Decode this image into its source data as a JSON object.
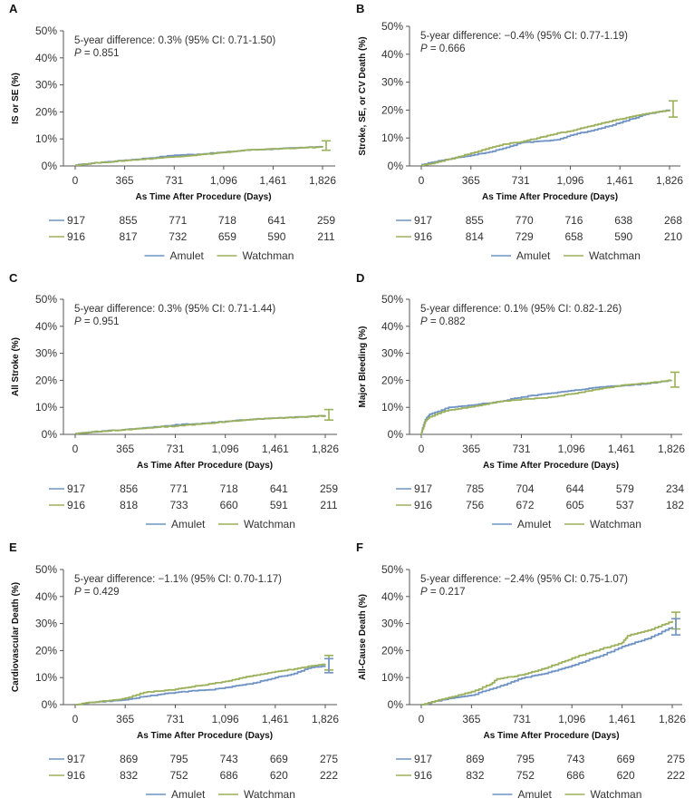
{
  "colors": {
    "amulet": "#6f93c4",
    "watchman": "#9bb05a",
    "axis": "#555555"
  },
  "legend": {
    "amulet": "Amulet",
    "watchman": "Watchman"
  },
  "chart_data": [
    {
      "panel": "A",
      "type": "line",
      "ylabel": "IS or SE (%)",
      "xlabel": "As Time After Procedure (Days)",
      "x_ticks": [
        "0",
        "365",
        "731",
        "1,096",
        "1,461",
        "1,826"
      ],
      "y_ticks": [
        "0%",
        "10%",
        "20%",
        "30%",
        "40%",
        "50%"
      ],
      "xlim": [
        0,
        1826
      ],
      "ylim": [
        0,
        50
      ],
      "annotation": {
        "line1": "5-year difference: 0.3% (95% CI: 0.71-1.50)",
        "p_label": "P",
        "p_value": " = 0.851"
      },
      "series": [
        {
          "name": "Amulet",
          "x": [
            0,
            120,
            365,
            600,
            731,
            900,
            1096,
            1300,
            1461,
            1700,
            1826
          ],
          "y": [
            0.3,
            1.0,
            2.1,
            3.2,
            4.0,
            4.3,
            5.1,
            6.0,
            6.3,
            6.8,
            7.3
          ]
        },
        {
          "name": "Watchman",
          "x": [
            0,
            120,
            365,
            600,
            731,
            900,
            1096,
            1300,
            1461,
            1700,
            1826
          ],
          "y": [
            0.3,
            1.0,
            2.0,
            2.9,
            3.4,
            4.1,
            5.0,
            6.0,
            6.3,
            6.8,
            7.0
          ]
        }
      ],
      "error_bars_at_end": [
        {
          "series": "Watchman",
          "low": 5.8,
          "high": 9.3
        }
      ],
      "risk_table": {
        "amulet": [
          "917",
          "855",
          "771",
          "718",
          "641",
          "259"
        ],
        "watchman": [
          "916",
          "817",
          "732",
          "659",
          "590",
          "211"
        ]
      }
    },
    {
      "panel": "B",
      "type": "line",
      "ylabel": "Stroke, SE, or CV Death (%)",
      "xlabel": "As Time After Procedure (Days)",
      "x_ticks": [
        "0",
        "365",
        "731",
        "1,096",
        "1,461",
        "1,826"
      ],
      "y_ticks": [
        "0%",
        "10%",
        "20%",
        "30%",
        "40%",
        "50%"
      ],
      "xlim": [
        0,
        1826
      ],
      "ylim": [
        0,
        50
      ],
      "annotation": {
        "line1": "5-year difference: −0.4% (95% CI: 0.77-1.19)",
        "p_label": "P",
        "p_value": " = 0.666"
      },
      "series": [
        {
          "name": "Amulet",
          "x": [
            0,
            100,
            250,
            365,
            500,
            600,
            731,
            900,
            1000,
            1096,
            1300,
            1461,
            1650,
            1826
          ],
          "y": [
            0.5,
            1.5,
            3.0,
            3.8,
            5.0,
            6.3,
            8.3,
            9.0,
            9.4,
            11.0,
            13.3,
            15.5,
            18.5,
            20.2
          ]
        },
        {
          "name": "Watchman",
          "x": [
            0,
            100,
            250,
            365,
            500,
            600,
            731,
            900,
            1000,
            1096,
            1300,
            1461,
            1650,
            1826
          ],
          "y": [
            0.3,
            1.2,
            3.0,
            4.6,
            6.5,
            7.8,
            8.6,
            10.5,
            11.8,
            12.5,
            15.0,
            16.8,
            18.7,
            20.0
          ]
        }
      ],
      "error_bars_at_end": [
        {
          "series": "Watchman",
          "low": 17.5,
          "high": 23.3
        }
      ],
      "risk_table": {
        "amulet": [
          "917",
          "855",
          "770",
          "716",
          "638",
          "268"
        ],
        "watchman": [
          "916",
          "814",
          "729",
          "658",
          "590",
          "210"
        ]
      }
    },
    {
      "panel": "C",
      "type": "line",
      "ylabel": "All Stroke (%)",
      "xlabel": "As Time After Procedure (Days)",
      "x_ticks": [
        "0",
        "365",
        "731",
        "1,096",
        "1,461",
        "1,826"
      ],
      "y_ticks": [
        "0%",
        "10%",
        "20%",
        "30%",
        "40%",
        "50%"
      ],
      "xlim": [
        0,
        1826
      ],
      "ylim": [
        0,
        50
      ],
      "annotation": {
        "line1": "5-year difference: 0.3% (95% CI: 0.71-1.44)",
        "p_label": "P",
        "p_value": " = 0.951"
      },
      "series": [
        {
          "name": "Amulet",
          "x": [
            0,
            120,
            365,
            600,
            731,
            900,
            1096,
            1300,
            1461,
            1700,
            1826
          ],
          "y": [
            0.3,
            0.9,
            1.8,
            2.8,
            3.6,
            3.9,
            4.8,
            5.6,
            6.0,
            6.6,
            7.0
          ]
        },
        {
          "name": "Watchman",
          "x": [
            0,
            120,
            365,
            600,
            731,
            900,
            1096,
            1300,
            1461,
            1700,
            1826
          ],
          "y": [
            0.3,
            0.9,
            1.8,
            2.7,
            3.1,
            3.8,
            4.7,
            5.6,
            6.0,
            6.6,
            6.9
          ]
        }
      ],
      "error_bars_at_end": [
        {
          "series": "Watchman",
          "low": 5.3,
          "high": 9.2
        }
      ],
      "risk_table": {
        "amulet": [
          "917",
          "856",
          "771",
          "718",
          "641",
          "259"
        ],
        "watchman": [
          "916",
          "818",
          "733",
          "660",
          "591",
          "211"
        ]
      }
    },
    {
      "panel": "D",
      "type": "line",
      "ylabel": "Major Bleeding (%)",
      "xlabel": "As Time After Procedure (Days)",
      "x_ticks": [
        "0",
        "365",
        "731",
        "1,096",
        "1,461",
        "1,826"
      ],
      "y_ticks": [
        "0%",
        "10%",
        "20%",
        "30%",
        "40%",
        "50%"
      ],
      "xlim": [
        0,
        1826
      ],
      "ylim": [
        0,
        50
      ],
      "annotation": {
        "line1": "5-year difference: 0.1% (95% CI: 0.82-1.26)",
        "p_label": "P",
        "p_value": " = 0.882"
      },
      "series": [
        {
          "name": "Amulet",
          "x": [
            0,
            10,
            30,
            60,
            120,
            200,
            365,
            550,
            731,
            900,
            1096,
            1300,
            1461,
            1650,
            1826
          ],
          "y": [
            0,
            2.5,
            5.5,
            7.5,
            8.5,
            10.0,
            10.8,
            12.0,
            13.8,
            15.0,
            16.2,
            17.5,
            18.0,
            18.8,
            20.0
          ]
        },
        {
          "name": "Watchman",
          "x": [
            0,
            10,
            30,
            60,
            120,
            200,
            365,
            550,
            731,
            900,
            1096,
            1300,
            1461,
            1650,
            1826
          ],
          "y": [
            0,
            2.0,
            5.0,
            6.5,
            7.8,
            9.0,
            10.2,
            12.0,
            13.0,
            13.5,
            15.0,
            16.8,
            18.2,
            19.0,
            20.1
          ]
        }
      ],
      "error_bars_at_end": [
        {
          "series": "Watchman",
          "low": 17.5,
          "high": 23.0
        }
      ],
      "risk_table": {
        "amulet": [
          "917",
          "785",
          "704",
          "644",
          "579",
          "234"
        ],
        "watchman": [
          "916",
          "756",
          "672",
          "605",
          "537",
          "182"
        ]
      }
    },
    {
      "panel": "E",
      "type": "line",
      "ylabel": "Cardiovascular Death (%)",
      "xlabel": "As Time After Procedure (Days)",
      "x_ticks": [
        "0",
        "365",
        "731",
        "1,096",
        "1,461",
        "1,826"
      ],
      "y_ticks": [
        "0%",
        "10%",
        "20%",
        "30%",
        "40%",
        "50%"
      ],
      "xlim": [
        0,
        1826
      ],
      "ylim": [
        0,
        50
      ],
      "annotation": {
        "line1": "5-year difference: −1.1% (95% CI: 0.70-1.17)",
        "p_label": "P",
        "p_value": " = 0.429"
      },
      "series": [
        {
          "name": "Amulet",
          "x": [
            0,
            100,
            300,
            365,
            500,
            731,
            900,
            1000,
            1096,
            1300,
            1461,
            1600,
            1700,
            1826
          ],
          "y": [
            0,
            0.8,
            1.5,
            1.8,
            3.0,
            4.5,
            5.3,
            5.5,
            6.3,
            8.0,
            10.0,
            11.5,
            13.5,
            14.3
          ]
        },
        {
          "name": "Watchman",
          "x": [
            0,
            100,
            300,
            365,
            500,
            731,
            900,
            1000,
            1096,
            1300,
            1461,
            1600,
            1700,
            1826
          ],
          "y": [
            0,
            0.8,
            1.8,
            2.4,
            4.5,
            5.7,
            7.0,
            7.8,
            8.6,
            10.8,
            12.2,
            13.2,
            14.2,
            15.0
          ]
        }
      ],
      "error_bars_at_end": [
        {
          "series": "Watchman",
          "low": 12.8,
          "high": 18.2
        },
        {
          "series": "Amulet",
          "low": 11.8,
          "high": 17.0
        }
      ],
      "risk_table": {
        "amulet": [
          "917",
          "869",
          "795",
          "743",
          "669",
          "275"
        ],
        "watchman": [
          "916",
          "832",
          "752",
          "686",
          "620",
          "222"
        ]
      }
    },
    {
      "panel": "F",
      "type": "line",
      "ylabel": "All-Cause Death (%)",
      "xlabel": "As Time After Procedure (Days)",
      "x_ticks": [
        "0",
        "365",
        "731",
        "1,096",
        "1,461",
        "1,826"
      ],
      "y_ticks": [
        "0%",
        "10%",
        "20%",
        "30%",
        "40%",
        "50%"
      ],
      "xlim": [
        0,
        1826
      ],
      "ylim": [
        0,
        50
      ],
      "annotation": {
        "line1": "5-year difference: −2.4% (95% CI: 0.75-1.07)",
        "p_label": "P",
        "p_value": " = 0.217"
      },
      "series": [
        {
          "name": "Amulet",
          "x": [
            0,
            150,
            365,
            550,
            731,
            900,
            1096,
            1300,
            1461,
            1650,
            1826
          ],
          "y": [
            0,
            1.8,
            3.5,
            6.5,
            9.8,
            11.5,
            14.5,
            18.0,
            21.5,
            24.5,
            28.8
          ]
        },
        {
          "name": "Watchman",
          "x": [
            0,
            150,
            365,
            500,
            550,
            731,
            900,
            1096,
            1300,
            1461,
            1500,
            1650,
            1826
          ],
          "y": [
            0,
            2.0,
            4.8,
            7.5,
            9.5,
            11.0,
            13.5,
            17.2,
            20.5,
            23.0,
            25.5,
            27.5,
            31.0
          ]
        }
      ],
      "error_bars_at_end": [
        {
          "series": "Watchman",
          "low": 28.0,
          "high": 34.2
        },
        {
          "series": "Amulet",
          "low": 25.8,
          "high": 31.8
        }
      ],
      "risk_table": {
        "amulet": [
          "917",
          "869",
          "795",
          "743",
          "669",
          "275"
        ],
        "watchman": [
          "916",
          "832",
          "752",
          "686",
          "620",
          "222"
        ]
      }
    }
  ]
}
